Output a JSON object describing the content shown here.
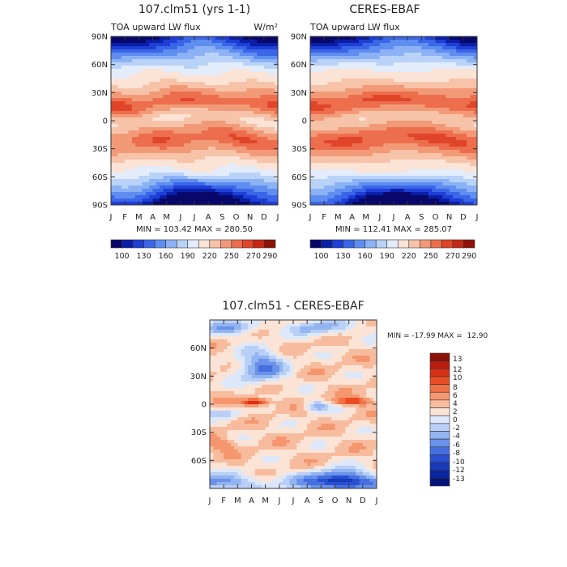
{
  "figure": {
    "months": [
      "J",
      "F",
      "M",
      "A",
      "M",
      "J",
      "J",
      "A",
      "S",
      "O",
      "N",
      "D",
      "J"
    ],
    "lat_ticks": [
      "90N",
      "60N",
      "30N",
      "0",
      "30S",
      "60S",
      "90S"
    ],
    "diff_lat_ticks": [
      "60N",
      "30N",
      "0",
      "30S",
      "60S"
    ]
  },
  "panels": {
    "model": {
      "title": "107.clm51 (yrs 1-1)",
      "subtitle": "TOA upward LW flux",
      "units": "W/m²",
      "stats": "MIN = 103.42 MAX = 280.50",
      "colorbar_labels": [
        "100",
        "130",
        "160",
        "190",
        "220",
        "250",
        "270",
        "290"
      ]
    },
    "obs": {
      "title": "CERES-EBAF",
      "subtitle": "TOA upward LW flux",
      "stats": "MIN = 112.41 MAX = 285.07",
      "colorbar_labels": [
        "100",
        "130",
        "160",
        "190",
        "220",
        "250",
        "270",
        "290"
      ]
    },
    "diff": {
      "title": "107.clm51 - CERES-EBAF",
      "stats": "MIN = -17.99 MAX =  12.90",
      "colorbar_labels": [
        "13",
        "12",
        "10",
        "8",
        "6",
        "4",
        "2",
        "0",
        "-2",
        "-4",
        "-6",
        "-8",
        "-10",
        "-12",
        "-13"
      ]
    }
  },
  "colors": {
    "flux_scale": [
      "#08086b",
      "#0a1fa8",
      "#1f3fd6",
      "#3a66e8",
      "#5f8ef0",
      "#8cb2f5",
      "#b9d2f8",
      "#e2ecfb",
      "#fbe3d6",
      "#f7c3a8",
      "#f29a78",
      "#ec6e4d",
      "#e0452a",
      "#c42814",
      "#8e1208"
    ],
    "diff_scale": [
      "#8b1106",
      "#b81d0e",
      "#d83015",
      "#ea4d26",
      "#f27045",
      "#f5966e",
      "#f7bc9e",
      "#fbe3d6",
      "#dce8fa",
      "#b9cff6",
      "#92b4f0",
      "#6a92ea",
      "#4670e0",
      "#2a4fd0",
      "#163ab8",
      "#0b25a0",
      "#05147a"
    ]
  },
  "chart_data": [
    {
      "type": "heatmap",
      "title": "107.clm51 (yrs 1-1)",
      "subtitle": "TOA upward LW flux",
      "units": "W/m²",
      "x": [
        "J",
        "F",
        "M",
        "A",
        "M",
        "J",
        "J",
        "A",
        "S",
        "O",
        "N",
        "D",
        "J"
      ],
      "y": [
        90,
        60,
        30,
        0,
        -30,
        -60,
        -90
      ],
      "ylabels": [
        "90N",
        "60N",
        "30N",
        "0",
        "30S",
        "60S",
        "90S"
      ],
      "min": 103.42,
      "max": 280.5,
      "levels": [
        100,
        115,
        130,
        145,
        160,
        175,
        190,
        205,
        220,
        235,
        250,
        260,
        270,
        280,
        290
      ]
    },
    {
      "type": "heatmap",
      "title": "CERES-EBAF",
      "subtitle": "TOA upward LW flux",
      "x": [
        "J",
        "F",
        "M",
        "A",
        "M",
        "J",
        "J",
        "A",
        "S",
        "O",
        "N",
        "D",
        "J"
      ],
      "y": [
        90,
        60,
        30,
        0,
        -30,
        -60,
        -90
      ],
      "ylabels": [
        "90N",
        "60N",
        "30N",
        "0",
        "30S",
        "60S",
        "90S"
      ],
      "min": 112.41,
      "max": 285.07,
      "levels": [
        100,
        115,
        130,
        145,
        160,
        175,
        190,
        205,
        220,
        235,
        250,
        260,
        270,
        280,
        290
      ]
    },
    {
      "type": "heatmap",
      "title": "107.clm51 - CERES-EBAF",
      "x": [
        "J",
        "F",
        "M",
        "A",
        "M",
        "J",
        "J",
        "A",
        "S",
        "O",
        "N",
        "D",
        "J"
      ],
      "ylabels": [
        "60N",
        "30N",
        "0",
        "30S",
        "60S"
      ],
      "min": -17.99,
      "max": 12.9,
      "levels": [
        13,
        12,
        10,
        8,
        6,
        4,
        2,
        0,
        -2,
        -4,
        -6,
        -8,
        -10,
        -12,
        -13
      ]
    }
  ]
}
